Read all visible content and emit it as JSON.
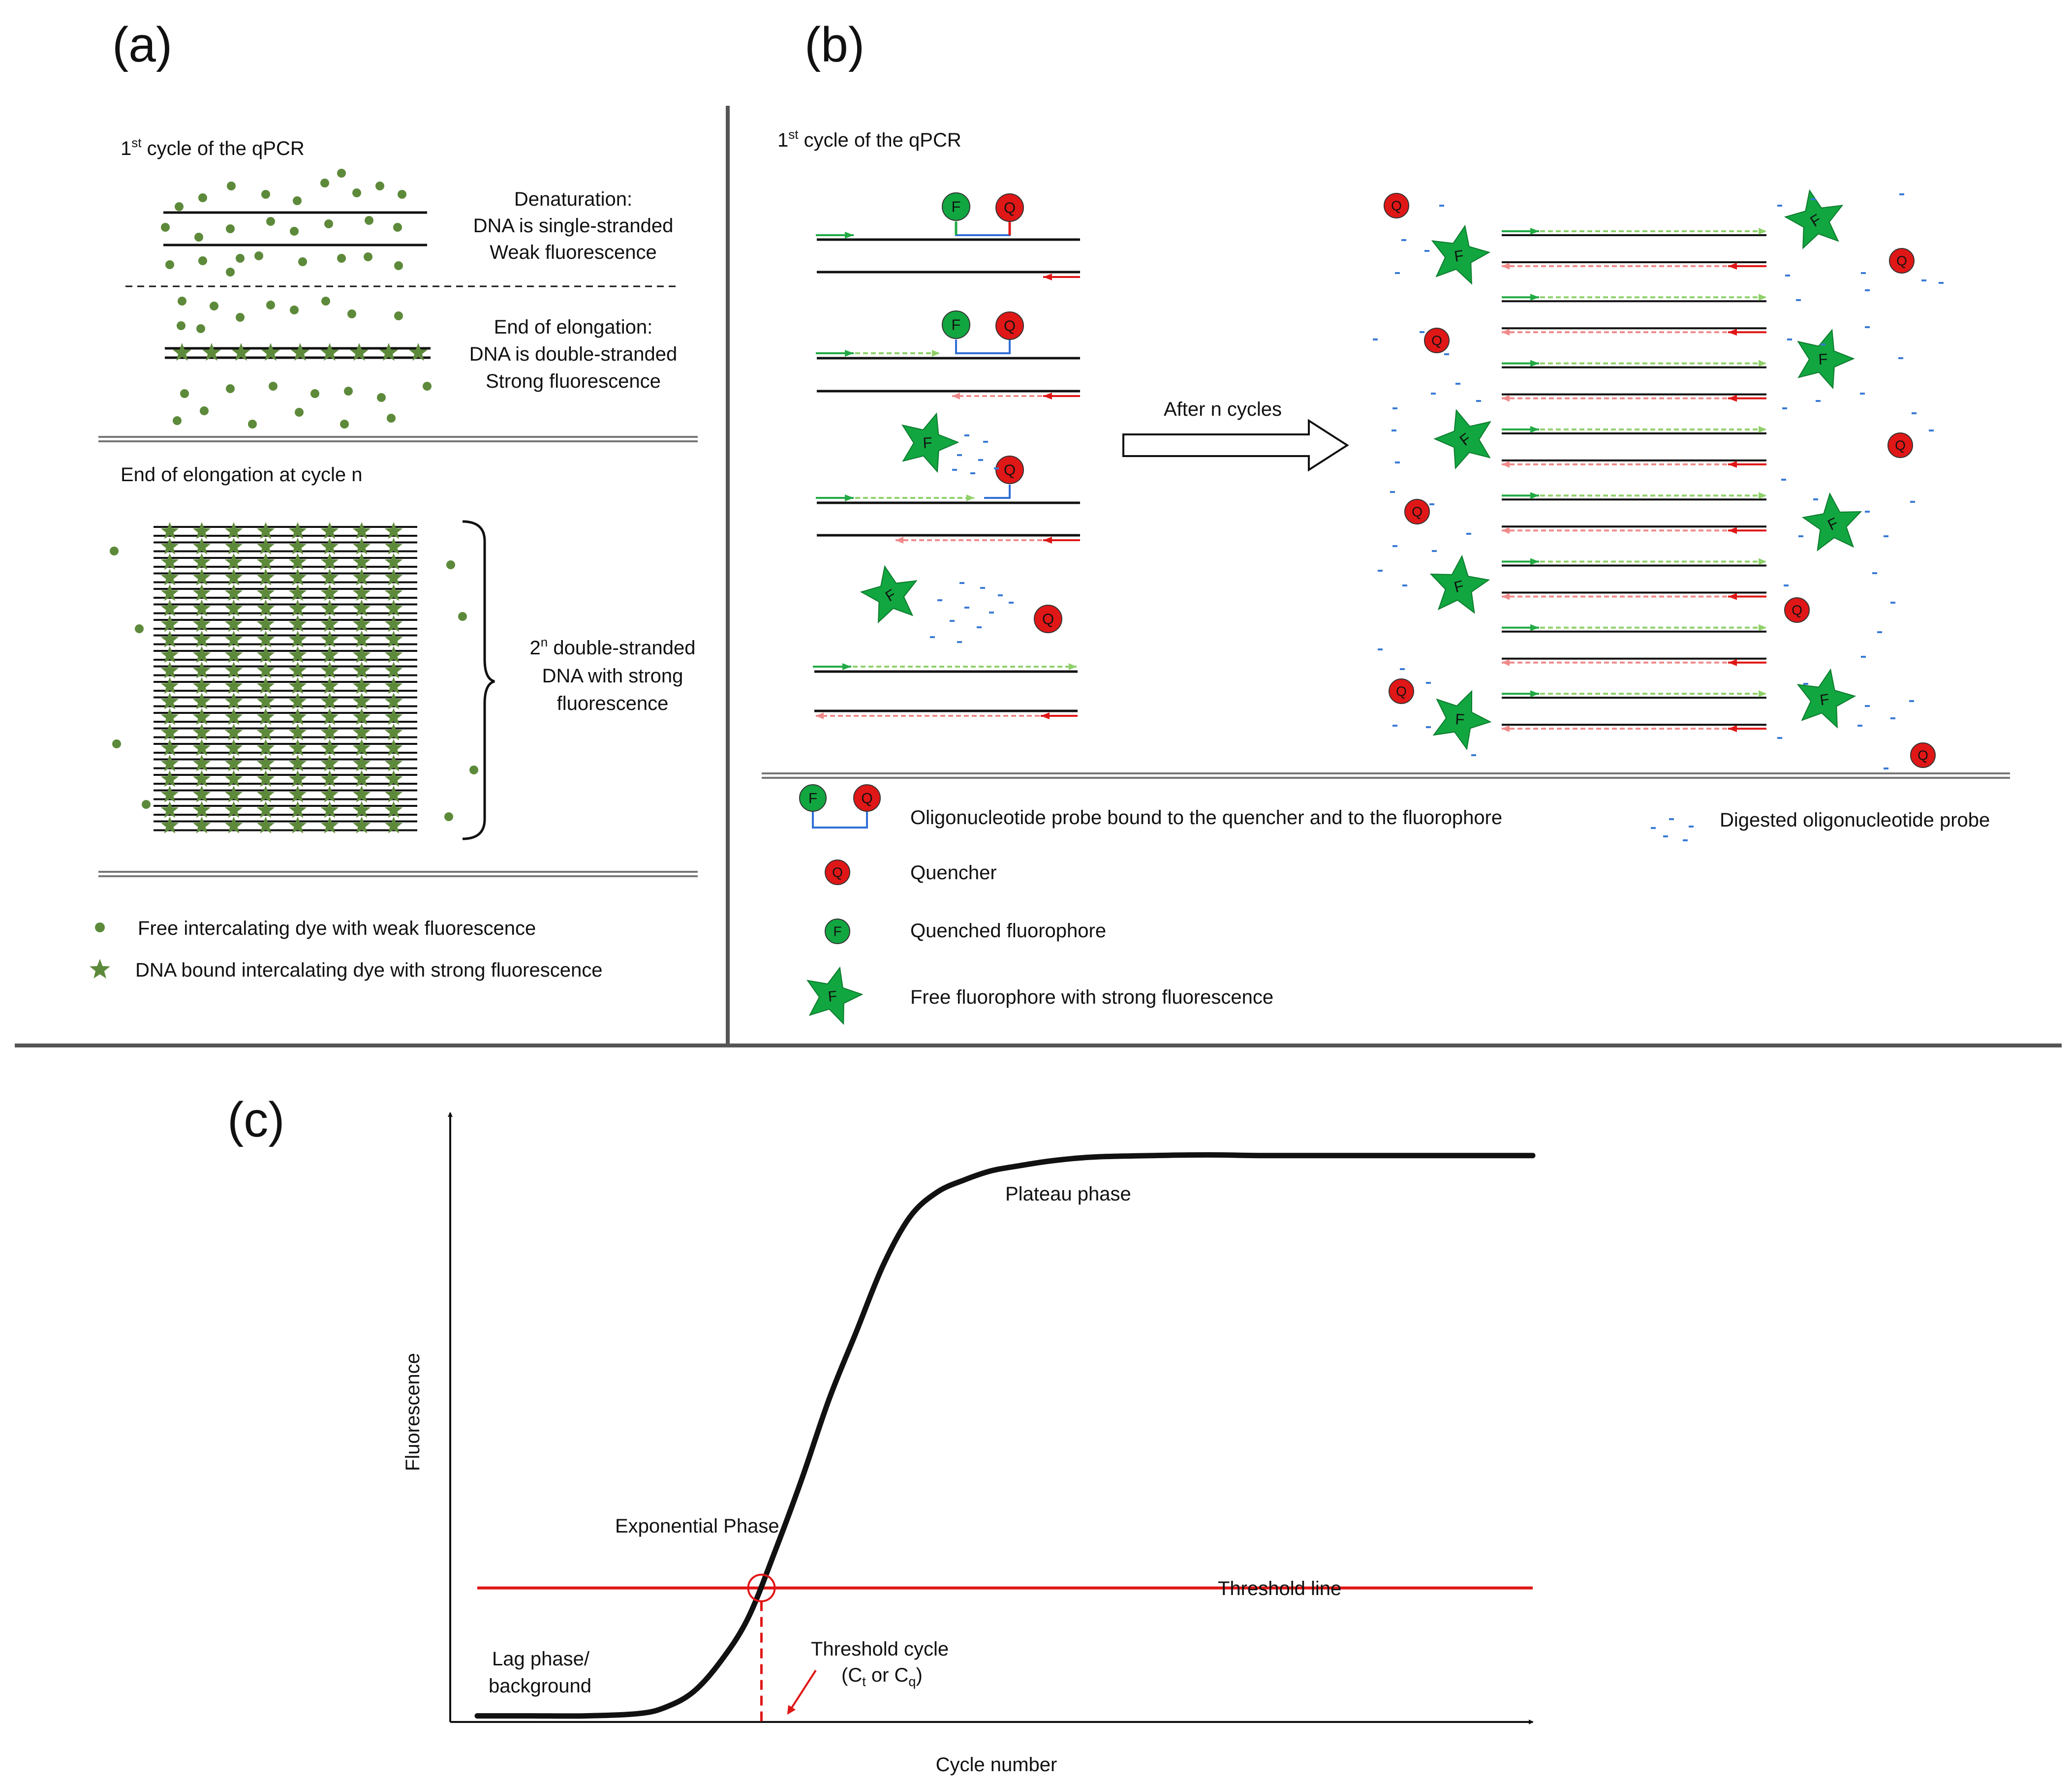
{
  "colors": {
    "dye": "#5d8a3a",
    "fluor": "#12a640",
    "quench": "#e01717",
    "probe_link": "#2f6fd6",
    "fwd_arrow": "#22aa44",
    "rev_arrow": "#e01717",
    "ext_fwd": "#8fd16a",
    "ext_rev": "#f08a8a",
    "digest": "#3a7bd5",
    "threshold": "#e01717"
  },
  "panel_a": {
    "label": "(a)",
    "cycle1_title_pre": "1",
    "cycle1_title_sup": "st",
    "cycle1_title_post": " cycle of the qPCR",
    "denat_l1": "Denaturation:",
    "denat_l2": "DNA is single-stranded",
    "denat_l3": "Weak fluorescence",
    "elong_l1": "End of elongation:",
    "elong_l2": "DNA is double-stranded",
    "elong_l3": "Strong fluorescence",
    "cycle_n_title": "End of elongation at cycle n",
    "brace_l1_pre": "2",
    "brace_l1_sup": "n",
    "brace_l1_post": " double-stranded",
    "brace_l2": "DNA with strong",
    "brace_l3": "fluorescence",
    "legend_free": "Free intercalating dye with weak fluorescence",
    "legend_bound": "DNA bound intercalating dye with strong fluorescence"
  },
  "panel_b": {
    "label": "(b)",
    "cycle1_title_pre": "1",
    "cycle1_title_sup": "st",
    "cycle1_title_post": " cycle of the qPCR",
    "after_cycles": "After n cycles",
    "fluor_letter": "F",
    "quench_letter": "Q",
    "legend_probe": "Oligonucleotide probe bound to the quencher and to the fluorophore",
    "legend_quencher": "Quencher",
    "legend_quenched_fluor": "Quenched fluorophore",
    "legend_free_fluor": "Free fluorophore with strong fluorescence",
    "legend_digested": "Digested oligonucleotide probe"
  },
  "panel_c": {
    "label": "(c)",
    "xlabel": "Cycle number",
    "ylabel": "Fluorescence",
    "plateau": "Plateau phase",
    "exponential": "Exponential Phase",
    "threshold_line": "Threshold line",
    "lag_l1": "Lag phase/",
    "lag_l2": "background",
    "tc_l1": "Threshold cycle",
    "tc_l2_a": "(C",
    "tc_l2_sub1": "t",
    "tc_l2_b": " or C",
    "tc_l2_sub2": "q",
    "tc_l2_c": ")"
  },
  "chart_data": {
    "type": "line",
    "title": "",
    "xlabel": "Cycle number",
    "ylabel": "Fluorescence",
    "xlim": [
      0,
      40
    ],
    "ylim": [
      0,
      100
    ],
    "grid": false,
    "series": [
      {
        "name": "Amplification curve",
        "x": [
          1,
          3,
          5,
          7,
          8,
          9,
          10,
          11,
          12,
          13,
          14,
          15,
          16,
          17,
          18,
          19,
          20,
          21,
          22,
          23,
          24,
          26,
          28,
          30,
          32,
          34,
          36,
          38,
          40
        ],
        "y": [
          1,
          1,
          1,
          1.4,
          2.5,
          5,
          10,
          17,
          28,
          40,
          53,
          64,
          75,
          83,
          87,
          89,
          90.5,
          91.3,
          92,
          92.5,
          92.8,
          93,
          93.1,
          93,
          93,
          93,
          93,
          93,
          93
        ]
      },
      {
        "name": "Threshold line",
        "x": [
          1,
          40
        ],
        "y": [
          22,
          22
        ]
      }
    ],
    "annotations": [
      "Plateau phase",
      "Exponential Phase",
      "Threshold line",
      "Lag phase/ background",
      "Threshold cycle (Ct or Cq)"
    ],
    "threshold": 22,
    "threshold_cycle": 11.5
  }
}
